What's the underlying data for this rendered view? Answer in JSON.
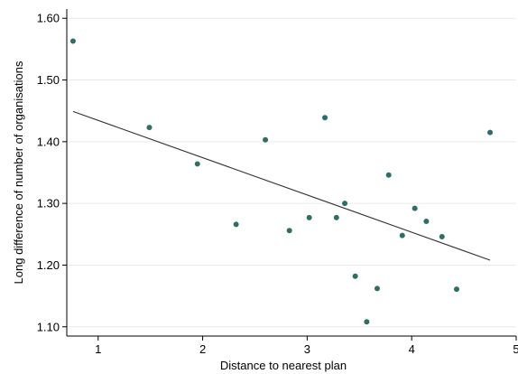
{
  "chart_data": {
    "type": "scatter",
    "xlabel": "Distance to nearest plan",
    "ylabel": "Long difference of number of organisations",
    "xlim": [
      0.7,
      5.0
    ],
    "ylim": [
      1.085,
      1.615
    ],
    "x_ticks": [
      {
        "value": 1,
        "label": "1"
      },
      {
        "value": 2,
        "label": "2"
      },
      {
        "value": 3,
        "label": "3"
      },
      {
        "value": 4,
        "label": "4"
      },
      {
        "value": 5,
        "label": "5"
      }
    ],
    "y_ticks": [
      {
        "value": 1.1,
        "label": "1.10"
      },
      {
        "value": 1.2,
        "label": "1.20"
      },
      {
        "value": 1.3,
        "label": "1.30"
      },
      {
        "value": 1.4,
        "label": "1.40"
      },
      {
        "value": 1.5,
        "label": "1.50"
      },
      {
        "value": 1.6,
        "label": "1.60"
      }
    ],
    "grid": "horizontal",
    "series": [
      {
        "type": "scatter",
        "color": "#2e6e65",
        "points": [
          {
            "x": 0.76,
            "y": 1.563
          },
          {
            "x": 1.49,
            "y": 1.423
          },
          {
            "x": 1.95,
            "y": 1.364
          },
          {
            "x": 2.32,
            "y": 1.266
          },
          {
            "x": 2.6,
            "y": 1.403
          },
          {
            "x": 2.83,
            "y": 1.256
          },
          {
            "x": 3.02,
            "y": 1.277
          },
          {
            "x": 3.17,
            "y": 1.439
          },
          {
            "x": 3.28,
            "y": 1.277
          },
          {
            "x": 3.36,
            "y": 1.3
          },
          {
            "x": 3.46,
            "y": 1.182
          },
          {
            "x": 3.57,
            "y": 1.108
          },
          {
            "x": 3.67,
            "y": 1.162
          },
          {
            "x": 3.78,
            "y": 1.346
          },
          {
            "x": 3.91,
            "y": 1.248
          },
          {
            "x": 4.03,
            "y": 1.292
          },
          {
            "x": 4.14,
            "y": 1.271
          },
          {
            "x": 4.29,
            "y": 1.246
          },
          {
            "x": 4.43,
            "y": 1.161
          },
          {
            "x": 4.75,
            "y": 1.415
          }
        ]
      },
      {
        "type": "line",
        "color": "#333333",
        "points": [
          {
            "x": 0.76,
            "y": 1.449
          },
          {
            "x": 4.75,
            "y": 1.208
          }
        ]
      }
    ]
  }
}
